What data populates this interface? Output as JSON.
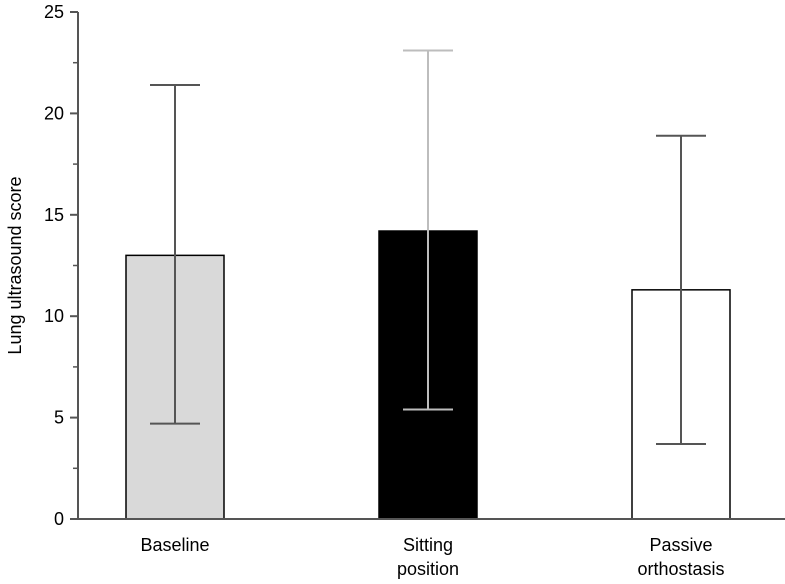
{
  "chart_data": {
    "type": "bar",
    "title": "",
    "xlabel": "",
    "ylabel": "Lung ultrasound score",
    "ylim": [
      0,
      25
    ],
    "yticks": [
      0,
      5,
      10,
      15,
      20,
      25
    ],
    "ytick_labels": [
      "0",
      "5",
      "10",
      "15",
      "20",
      "25"
    ],
    "minor_tick_step": 2.5,
    "grid": false,
    "legend": "none",
    "categories": [
      {
        "name": "Baseline",
        "lines": [
          "Baseline"
        ]
      },
      {
        "name": "Sitting position",
        "lines": [
          "Sitting",
          "position"
        ]
      },
      {
        "name": "Passive orthostasis",
        "lines": [
          "Passive",
          "orthostasis"
        ]
      }
    ],
    "values": [
      13,
      14.2,
      11.3
    ],
    "error_low": [
      4.7,
      5.4,
      3.7
    ],
    "error_high": [
      21.4,
      23.1,
      18.9
    ],
    "bar_fill_colors": [
      "#d9d9d9",
      "#000000",
      "#ffffff"
    ],
    "bar_stroke_color": "#000000",
    "error_bar_colors": [
      "#555555",
      "#bdbdbd",
      "#555555"
    ],
    "axis_color": "#555555"
  }
}
